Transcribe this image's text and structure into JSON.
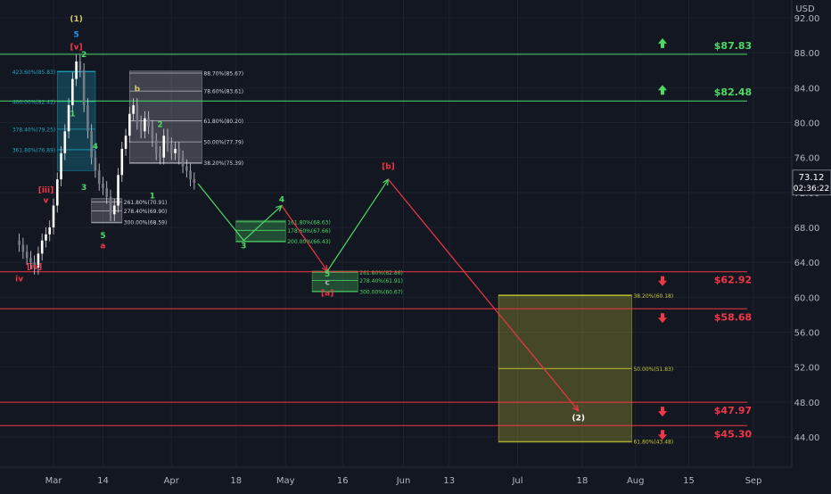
{
  "chart_data": {
    "type": "candlestick",
    "title": "",
    "currency": "USD",
    "ylim": [
      42,
      94
    ],
    "y_ticks": [
      44,
      48,
      52,
      56,
      60,
      64,
      68,
      72,
      76,
      80,
      84,
      88,
      92
    ],
    "y_tick_labels": [
      "44.00",
      "48.00",
      "52.00",
      "56.00",
      "60.00",
      "64.00",
      "68.00",
      "72.00",
      "76.00",
      "80.00",
      "84.00",
      "88.00",
      "92.00"
    ],
    "x_range": [
      "2022-02-20",
      "2022-09-01"
    ],
    "x_ticks": [
      {
        "date": "2022-03-01",
        "label": "Mar"
      },
      {
        "date": "2022-03-14",
        "label": "14"
      },
      {
        "date": "2022-04-01",
        "label": "Apr"
      },
      {
        "date": "2022-04-18",
        "label": "18"
      },
      {
        "date": "2022-05-01",
        "label": "May"
      },
      {
        "date": "2022-05-16",
        "label": "16"
      },
      {
        "date": "2022-06-01",
        "label": "Jun"
      },
      {
        "date": "2022-06-13",
        "label": "13"
      },
      {
        "date": "2022-07-01",
        "label": "Jul"
      },
      {
        "date": "2022-07-18",
        "label": "18"
      },
      {
        "date": "2022-08-01",
        "label": "Aug"
      },
      {
        "date": "2022-08-15",
        "label": "15"
      },
      {
        "date": "2022-09-01",
        "label": "Sep"
      }
    ],
    "last_price": {
      "value": 73.12,
      "label": "73.12",
      "countdown": "02:36:22"
    },
    "price_points": [
      [
        "2022-02-20",
        66.0
      ],
      [
        "2022-02-21",
        65.2
      ],
      [
        "2022-02-22",
        64.5
      ],
      [
        "2022-02-23",
        64.0
      ],
      [
        "2022-02-24",
        63.4
      ],
      [
        "2022-02-25",
        65.0
      ],
      [
        "2022-02-26",
        66.5
      ],
      [
        "2022-02-27",
        67.2
      ],
      [
        "2022-02-28",
        68.0
      ],
      [
        "2022-03-01",
        70.5
      ],
      [
        "2022-03-02",
        73.5
      ],
      [
        "2022-03-03",
        76.5
      ],
      [
        "2022-03-04",
        79.0
      ],
      [
        "2022-03-05",
        82.0
      ],
      [
        "2022-03-06",
        85.0
      ],
      [
        "2022-03-07",
        87.0
      ],
      [
        "2022-03-08",
        86.0
      ],
      [
        "2022-03-09",
        82.0
      ],
      [
        "2022-03-10",
        79.0
      ],
      [
        "2022-03-11",
        76.0
      ],
      [
        "2022-03-12",
        74.5
      ],
      [
        "2022-03-13",
        73.0
      ],
      [
        "2022-03-14",
        72.5
      ],
      [
        "2022-03-15",
        71.5
      ],
      [
        "2022-03-16",
        69.5
      ],
      [
        "2022-03-17",
        70.5
      ],
      [
        "2022-03-18",
        74.0
      ],
      [
        "2022-03-19",
        77.0
      ],
      [
        "2022-03-20",
        78.5
      ],
      [
        "2022-03-21",
        81.0
      ],
      [
        "2022-03-22",
        82.0
      ],
      [
        "2022-03-23",
        80.0
      ],
      [
        "2022-03-24",
        79.0
      ],
      [
        "2022-03-25",
        80.5
      ],
      [
        "2022-03-26",
        79.5
      ],
      [
        "2022-03-27",
        78.0
      ],
      [
        "2022-03-28",
        76.5
      ],
      [
        "2022-03-29",
        76.0
      ],
      [
        "2022-03-30",
        78.5
      ],
      [
        "2022-03-31",
        77.5
      ],
      [
        "2022-04-01",
        76.5
      ],
      [
        "2022-04-02",
        77.0
      ],
      [
        "2022-04-03",
        76.0
      ],
      [
        "2022-04-04",
        75.0
      ],
      [
        "2022-04-05",
        74.5
      ],
      [
        "2022-04-06",
        73.5
      ],
      [
        "2022-04-07",
        73.12
      ]
    ],
    "horizontal_levels": [
      {
        "price": 87.83,
        "label": "$87.83",
        "color": "#4cd964",
        "arrow": "up"
      },
      {
        "price": 82.48,
        "label": "$82.48",
        "color": "#4cd964",
        "arrow": "up"
      },
      {
        "price": 62.92,
        "label": "$62.92",
        "color": "#f23645",
        "arrow": "down"
      },
      {
        "price": 58.68,
        "label": "$58.68",
        "color": "#f23645",
        "arrow": "down"
      },
      {
        "price": 47.97,
        "label": "$47.97",
        "color": "#f23645",
        "arrow": "down"
      },
      {
        "price": 45.3,
        "label": "$45.30",
        "color": "#f23645",
        "arrow": "down"
      }
    ],
    "fib_boxes": [
      {
        "color": "#1aa6c0",
        "x": [
          "2022-03-02",
          "2022-03-12"
        ],
        "y": [
          74.5,
          85.9
        ],
        "levels": [
          {
            "price": 85.83,
            "label": "423.60%(85.83)"
          },
          {
            "price": 82.42,
            "label": "400.00%(82.42)"
          },
          {
            "price": 79.25,
            "label": "378.40%(79.25)"
          },
          {
            "price": 76.89,
            "label": "361.80%(76.89)"
          }
        ]
      },
      {
        "color": "#b2b5be",
        "x": [
          "2022-03-21",
          "2022-04-09"
        ],
        "y": [
          75.3,
          85.9
        ],
        "levels": [
          {
            "price": 85.67,
            "label": "88.70%(85.67)"
          },
          {
            "price": 83.61,
            "label": "78.60%(83.61)"
          },
          {
            "price": 80.2,
            "label": "61.80%(80.20)"
          },
          {
            "price": 77.79,
            "label": "50.00%(77.79)"
          },
          {
            "price": 75.39,
            "label": "38.20%(75.39)"
          }
        ]
      },
      {
        "color": "#b2b5be",
        "x": [
          "2022-03-11",
          "2022-03-19"
        ],
        "y": [
          68.5,
          71.3
        ],
        "levels": [
          {
            "price": 70.91,
            "label": "261.80%(70.91)"
          },
          {
            "price": 69.9,
            "label": "278.40%(69.90)"
          },
          {
            "price": 68.59,
            "label": "300.00%(68.59)"
          }
        ]
      },
      {
        "color": "#4cd964",
        "x": [
          "2022-04-18",
          "2022-05-01"
        ],
        "y": [
          66.3,
          68.8
        ],
        "levels": [
          {
            "price": 68.63,
            "label": "161.80%(68.63)"
          },
          {
            "price": 67.66,
            "label": "178.60%(67.66)"
          },
          {
            "price": 66.43,
            "label": "200.00%(66.43)"
          }
        ]
      },
      {
        "color": "#4cd964",
        "x": [
          "2022-05-08",
          "2022-05-20"
        ],
        "y": [
          60.6,
          63.0
        ],
        "levels": [
          {
            "price": 62.86,
            "label": "261.80%(62.86)"
          },
          {
            "price": 61.91,
            "label": "278.40%(61.91)"
          },
          {
            "price": 60.67,
            "label": "300.00%(60.67)"
          }
        ]
      },
      {
        "color": "#c8c832",
        "x": [
          "2022-06-26",
          "2022-07-31"
        ],
        "y": [
          43.4,
          60.3
        ],
        "levels": [
          {
            "price": 60.18,
            "label": "38.20%(60.18)"
          },
          {
            "price": 51.83,
            "label": "50.00%(51.83)"
          },
          {
            "price": 43.48,
            "label": "61.80%(43.48)"
          }
        ]
      }
    ],
    "projection_paths": [
      {
        "color": "#4cd964",
        "points": [
          [
            "2022-04-08",
            73.0
          ],
          [
            "2022-04-20",
            66.5
          ],
          [
            "2022-04-30",
            70.5
          ]
        ]
      },
      {
        "color": "#f23645",
        "points": [
          [
            "2022-04-30",
            70.5
          ],
          [
            "2022-05-12",
            63.0
          ]
        ]
      },
      {
        "color": "#4cd964",
        "points": [
          [
            "2022-05-12",
            63.0
          ],
          [
            "2022-05-28",
            73.5
          ]
        ]
      },
      {
        "color": "#f23645",
        "points": [
          [
            "2022-05-28",
            73.5
          ],
          [
            "2022-07-17",
            47.0
          ]
        ]
      }
    ],
    "wave_labels": [
      {
        "text": "(1)",
        "date": "2022-03-07",
        "price": 91.6,
        "color": "#d4c86a"
      },
      {
        "text": "5",
        "date": "2022-03-07",
        "price": 89.8,
        "color": "#2196f3"
      },
      {
        "text": "[v]",
        "date": "2022-03-07",
        "price": 88.4,
        "color": "#f23645"
      },
      {
        "text": "2",
        "date": "2022-03-09",
        "price": 87.5,
        "color": "#4cd964"
      },
      {
        "text": "1",
        "date": "2022-03-06",
        "price": 80.7,
        "color": "#4cd964"
      },
      {
        "text": "4",
        "date": "2022-03-12",
        "price": 77.0,
        "color": "#4cd964"
      },
      {
        "text": "3",
        "date": "2022-03-09",
        "price": 72.3,
        "color": "#4cd964"
      },
      {
        "text": "[iii]",
        "date": "2022-02-27",
        "price": 72.0,
        "color": "#f23645"
      },
      {
        "text": "v",
        "date": "2022-02-27",
        "price": 70.8,
        "color": "#f23645"
      },
      {
        "text": "5",
        "date": "2022-03-14",
        "price": 66.8,
        "color": "#4cd964"
      },
      {
        "text": "a",
        "date": "2022-03-14",
        "price": 65.6,
        "color": "#f23645"
      },
      {
        "text": "b",
        "date": "2022-03-23",
        "price": 83.6,
        "color": "#d4c86a"
      },
      {
        "text": "2",
        "date": "2022-03-29",
        "price": 79.5,
        "color": "#4cd964"
      },
      {
        "text": "1",
        "date": "2022-03-27",
        "price": 71.3,
        "color": "#4cd964"
      },
      {
        "text": "[iv]",
        "date": "2022-02-24",
        "price": 63.2,
        "color": "#f23645"
      },
      {
        "text": "iv",
        "date": "2022-02-20",
        "price": 61.8,
        "color": "#f23645"
      },
      {
        "text": "4",
        "date": "2022-04-30",
        "price": 70.9,
        "color": "#4cd964"
      },
      {
        "text": "3",
        "date": "2022-04-20",
        "price": 65.6,
        "color": "#4cd964"
      },
      {
        "text": "5",
        "date": "2022-05-12",
        "price": 62.4,
        "color": "#4cd964"
      },
      {
        "text": "c",
        "date": "2022-05-12",
        "price": 61.4,
        "color": "#b2b5be"
      },
      {
        "text": "[a]",
        "date": "2022-05-12",
        "price": 60.2,
        "color": "#f23645"
      },
      {
        "text": "[b]",
        "date": "2022-05-28",
        "price": 74.7,
        "color": "#f23645"
      },
      {
        "text": "(2)",
        "date": "2022-07-17",
        "price": 45.9,
        "color": "#ffffff"
      }
    ]
  }
}
